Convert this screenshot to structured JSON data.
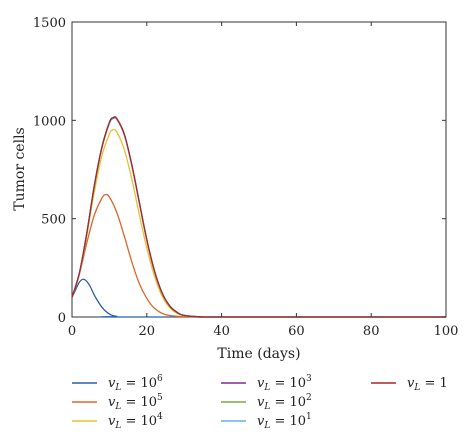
{
  "chart_data": {
    "type": "line",
    "xlabel": "Time (days)",
    "ylabel": "Tumor cells",
    "xlim": [
      0,
      100
    ],
    "ylim": [
      0,
      1500
    ],
    "x_ticks": [
      0,
      20,
      40,
      60,
      80,
      100
    ],
    "y_ticks": [
      0,
      500,
      1000,
      1500
    ],
    "grid": false,
    "legend_position": "bottom",
    "series": [
      {
        "name": "v_L = 10^6",
        "color": "#2e5fa8",
        "x": [
          0,
          1,
          2,
          3,
          4,
          5,
          6,
          8,
          10,
          12,
          15
        ],
        "y": [
          100,
          140,
          178,
          192,
          180,
          150,
          110,
          50,
          15,
          3,
          0
        ]
      },
      {
        "name": "v_L = 10^5",
        "color": "#d9682a",
        "x": [
          0,
          2,
          4,
          6,
          8,
          9,
          10,
          12,
          14,
          16,
          18,
          20,
          22,
          25,
          30,
          35
        ],
        "y": [
          100,
          220,
          380,
          520,
          605,
          622,
          610,
          530,
          410,
          280,
          170,
          95,
          45,
          12,
          1,
          0
        ]
      },
      {
        "name": "v_L = 10^4",
        "color": "#e8c132",
        "x": [
          0,
          2,
          4,
          6,
          8,
          10,
          11,
          12,
          14,
          16,
          18,
          20,
          22,
          24,
          26,
          28,
          30,
          35,
          40
        ],
        "y": [
          100,
          220,
          420,
          640,
          820,
          930,
          952,
          940,
          850,
          700,
          520,
          350,
          210,
          110,
          50,
          20,
          6,
          0,
          0
        ]
      },
      {
        "name": "v_L = 10^3",
        "color": "#7b2d8e",
        "x": [
          0,
          2,
          4,
          6,
          8,
          10,
          11,
          12,
          14,
          16,
          18,
          20,
          22,
          24,
          26,
          28,
          30,
          35,
          40
        ],
        "y": [
          100,
          225,
          430,
          670,
          860,
          985,
          1010,
          1005,
          925,
          770,
          580,
          390,
          235,
          125,
          58,
          24,
          8,
          0,
          0
        ]
      },
      {
        "name": "v_L = 10^2",
        "color": "#7aa842",
        "x": [
          0,
          2,
          4,
          6,
          8,
          10,
          11,
          12,
          14,
          16,
          18,
          20,
          22,
          24,
          26,
          28,
          30,
          35,
          40
        ],
        "y": [
          100,
          225,
          430,
          670,
          862,
          988,
          1012,
          1007,
          927,
          772,
          582,
          392,
          237,
          126,
          59,
          24,
          8,
          0,
          0
        ]
      },
      {
        "name": "v_L = 10^1",
        "color": "#63b3e2",
        "x": [
          0,
          2,
          4,
          6,
          8,
          10,
          11,
          12,
          14,
          16,
          18,
          20,
          22,
          24,
          26,
          28,
          30,
          35,
          40
        ],
        "y": [
          100,
          226,
          431,
          671,
          863,
          989,
          1013,
          1008,
          928,
          773,
          583,
          393,
          238,
          127,
          59,
          25,
          8,
          0,
          0
        ]
      },
      {
        "name": "v_L = 1",
        "color": "#a3282b",
        "x": [
          0,
          2,
          4,
          6,
          8,
          10,
          11,
          12,
          14,
          16,
          18,
          20,
          22,
          24,
          26,
          28,
          30,
          35,
          40,
          100
        ],
        "y": [
          100,
          226,
          432,
          672,
          864,
          990,
          1014,
          1009,
          929,
          774,
          584,
          394,
          239,
          127,
          60,
          25,
          8,
          0,
          0,
          0
        ]
      }
    ],
    "legend": [
      {
        "base": "v",
        "sub": "L",
        "rest": " = 10",
        "sup": "6",
        "color": "#2e5fa8"
      },
      {
        "base": "v",
        "sub": "L",
        "rest": " = 10",
        "sup": "5",
        "color": "#d9682a"
      },
      {
        "base": "v",
        "sub": "L",
        "rest": " = 10",
        "sup": "4",
        "color": "#e8c132"
      },
      {
        "base": "v",
        "sub": "L",
        "rest": " = 10",
        "sup": "3",
        "color": "#7b2d8e"
      },
      {
        "base": "v",
        "sub": "L",
        "rest": " = 10",
        "sup": "2",
        "color": "#7aa842"
      },
      {
        "base": "v",
        "sub": "L",
        "rest": " = 10",
        "sup": "1",
        "color": "#63b3e2"
      },
      {
        "base": "v",
        "sub": "L",
        "rest": " = 1",
        "sup": "",
        "color": "#a3282b"
      }
    ]
  }
}
